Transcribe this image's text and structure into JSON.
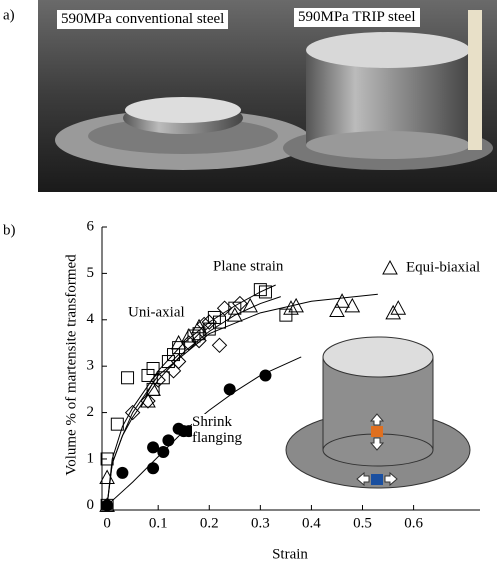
{
  "photo": {
    "panel_label": "a)",
    "labels": [
      "590MPa conventional steel",
      "590MPa TRIP steel"
    ]
  },
  "chart_data": {
    "type": "scatter",
    "panel_label": "b)",
    "x_label": "Strain",
    "y_label": "Volume % of martensite transformed",
    "xlim": [
      -0.01,
      0.73
    ],
    "ylim": [
      -0.1,
      6
    ],
    "xticks": [
      0,
      0.1,
      0.2,
      0.3,
      0.4,
      0.5,
      0.6
    ],
    "yticks": [
      0,
      1,
      2,
      3,
      4,
      5,
      6
    ],
    "series": [
      {
        "name": "Uni-axial",
        "marker": "square",
        "color": "#000",
        "x": [
          0,
          0,
          0.02,
          0.04,
          0.08,
          0.09,
          0.09,
          0.11,
          0.12,
          0.13,
          0.14,
          0.17,
          0.18,
          0.2,
          0.21,
          0.22,
          0.25,
          0.3,
          0.31,
          0.35
        ],
        "values": [
          0,
          1.0,
          1.75,
          2.75,
          2.8,
          2.95,
          2.5,
          2.75,
          3.1,
          3.25,
          3.4,
          3.65,
          3.7,
          3.8,
          4.05,
          3.95,
          4.25,
          4.65,
          4.6,
          4.1
        ]
      },
      {
        "name": "Plane strain",
        "marker": "diamond",
        "color": "#000",
        "x": [
          0.05,
          0.08,
          0.1,
          0.13,
          0.14,
          0.16,
          0.18,
          0.19,
          0.2,
          0.22,
          0.23,
          0.26
        ],
        "values": [
          2.0,
          2.25,
          2.7,
          2.9,
          3.1,
          3.5,
          3.55,
          3.9,
          3.95,
          3.45,
          4.25,
          4.35
        ]
      },
      {
        "name": "Equi-biaxial",
        "marker": "triangle",
        "color": "#000",
        "x": [
          0,
          0,
          0.08,
          0.09,
          0.14,
          0.16,
          0.18,
          0.25,
          0.28,
          0.36,
          0.37,
          0.45,
          0.46,
          0.48,
          0.56,
          0.57
        ],
        "values": [
          0,
          0.6,
          2.25,
          2.5,
          3.5,
          3.65,
          3.85,
          4.1,
          4.3,
          4.25,
          4.3,
          4.2,
          4.4,
          4.3,
          4.15,
          4.25
        ]
      },
      {
        "name": "Shrink flanging",
        "marker": "circle",
        "color": "#000",
        "x": [
          0,
          0.03,
          0.09,
          0.09,
          0.11,
          0.12,
          0.14,
          0.15,
          0.16,
          0.24,
          0.31
        ],
        "values": [
          0,
          0.7,
          0.8,
          1.25,
          1.15,
          1.4,
          1.65,
          1.6,
          1.6,
          2.5,
          2.8
        ]
      }
    ],
    "fits": [
      {
        "x": [
          0,
          0.01,
          0.03,
          0.05,
          0.1,
          0.15,
          0.2,
          0.25,
          0.3,
          0.33
        ],
        "values": [
          0,
          1.0,
          1.7,
          2.1,
          2.9,
          3.5,
          3.95,
          4.3,
          4.6,
          4.75
        ]
      },
      {
        "x": [
          0,
          0.01,
          0.03,
          0.05,
          0.1,
          0.15,
          0.2,
          0.25,
          0.3,
          0.34
        ],
        "values": [
          0,
          0.9,
          1.5,
          1.9,
          2.7,
          3.3,
          3.75,
          4.1,
          4.35,
          4.5
        ]
      },
      {
        "x": [
          0,
          0.01,
          0.03,
          0.05,
          0.1,
          0.2,
          0.3,
          0.4,
          0.53
        ],
        "values": [
          0,
          0.9,
          1.5,
          2.0,
          2.8,
          3.7,
          4.15,
          4.4,
          4.55
        ]
      },
      {
        "x": [
          0,
          0.05,
          0.1,
          0.15,
          0.2,
          0.25,
          0.3,
          0.38
        ],
        "values": [
          0,
          0.5,
          1.05,
          1.6,
          2.05,
          2.45,
          2.8,
          3.2
        ]
      }
    ]
  }
}
